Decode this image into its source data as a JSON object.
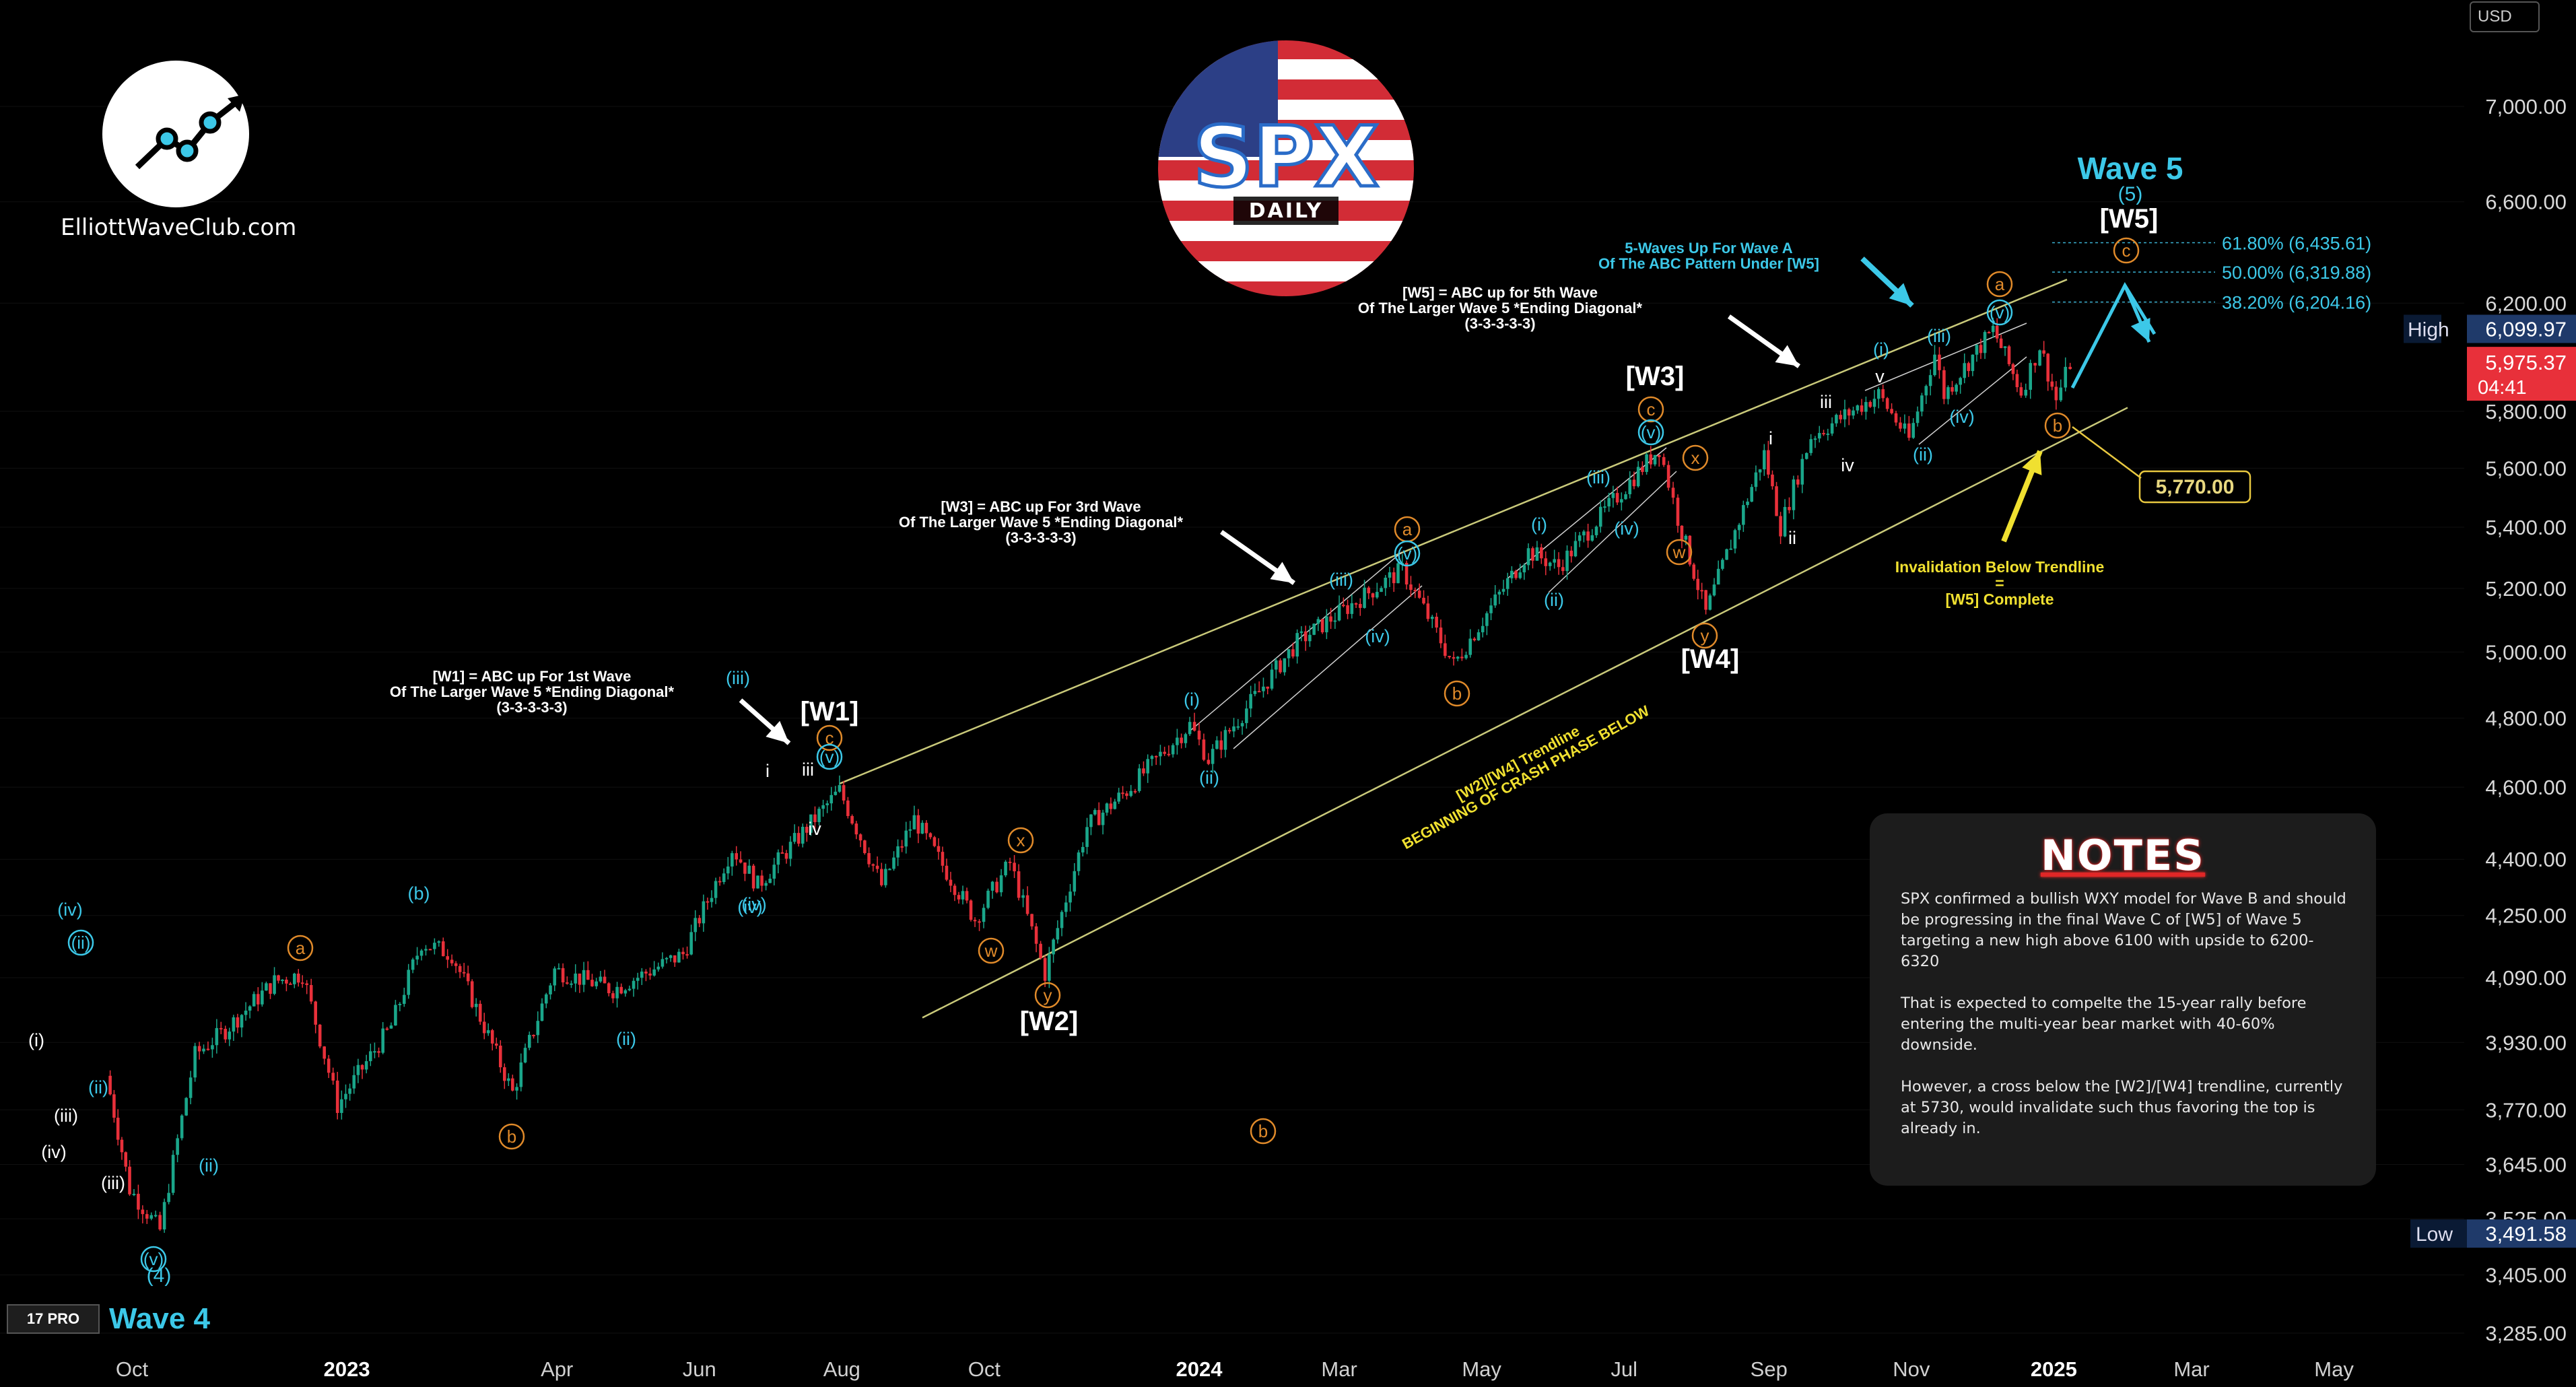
{
  "chart_data": {
    "type": "candlestick",
    "title": "SPX",
    "subtitle": "DAILY",
    "y_scale": "log",
    "ylim": [
      3240,
      7250
    ],
    "currency": "USD",
    "y_ticks": [
      "7,000.00",
      "6,600.00",
      "6,200.00",
      "5,800.00",
      "5,600.00",
      "5,400.00",
      "5,200.00",
      "5,000.00",
      "4,800.00",
      "4,600.00",
      "4,400.00",
      "4,250.00",
      "4,090.00",
      "3,930.00",
      "3,770.00",
      "3,645.00",
      "3,525.00",
      "3,405.00",
      "3,285.00"
    ],
    "x_ticks": [
      "Oct",
      "2023",
      "Apr",
      "Jun",
      "Aug",
      "Oct",
      "2024",
      "Mar",
      "May",
      "Jul",
      "Sep",
      "Nov",
      "2025",
      "Mar",
      "May"
    ],
    "price_series": [
      [
        "2022-09-20",
        3850
      ],
      [
        "2022-09-30",
        3590
      ],
      [
        "2022-10-13",
        3500
      ],
      [
        "2022-10-28",
        3900
      ],
      [
        "2022-11-10",
        3960
      ],
      [
        "2022-12-01",
        4080
      ],
      [
        "2022-12-13",
        4100
      ],
      [
        "2022-12-28",
        3780
      ],
      [
        "2023-01-20",
        3970
      ],
      [
        "2023-02-02",
        4180
      ],
      [
        "2023-02-15",
        4150
      ],
      [
        "2023-03-13",
        3810
      ],
      [
        "2023-03-31",
        4110
      ],
      [
        "2023-04-25",
        4060
      ],
      [
        "2023-05-25",
        4150
      ],
      [
        "2023-06-15",
        4430
      ],
      [
        "2023-06-26",
        4330
      ],
      [
        "2023-07-31",
        4590
      ],
      [
        "2023-08-18",
        4330
      ],
      [
        "2023-09-01",
        4510
      ],
      [
        "2023-09-27",
        4240
      ],
      [
        "2023-10-12",
        4390
      ],
      [
        "2023-10-27",
        4100
      ],
      [
        "2023-11-14",
        4490
      ],
      [
        "2023-12-01",
        4590
      ],
      [
        "2023-12-28",
        4780
      ],
      [
        "2024-01-05",
        4680
      ],
      [
        "2024-02-12",
        5030
      ],
      [
        "2024-03-28",
        5260
      ],
      [
        "2024-04-19",
        4960
      ],
      [
        "2024-05-21",
        5320
      ],
      [
        "2024-06-03",
        5270
      ],
      [
        "2024-07-16",
        5670
      ],
      [
        "2024-07-24",
        5430
      ],
      [
        "2024-08-05",
        5120
      ],
      [
        "2024-08-30",
        5650
      ],
      [
        "2024-09-06",
        5400
      ],
      [
        "2024-09-19",
        5710
      ],
      [
        "2024-10-18",
        5860
      ],
      [
        "2024-10-31",
        5700
      ],
      [
        "2024-11-11",
        6010
      ],
      [
        "2024-11-15",
        5860
      ],
      [
        "2024-12-06",
        6099.97
      ],
      [
        "2024-12-18",
        5870
      ],
      [
        "2024-12-26",
        6040
      ],
      [
        "2025-01-02",
        5840
      ],
      [
        "2025-01-08",
        5975.37
      ]
    ],
    "fib_levels": [
      {
        "label": "61.80% (6,435.61)",
        "value": 6435.61
      },
      {
        "label": "50.00% (6,319.88)",
        "value": 6319.88
      },
      {
        "label": "38.20% (6,204.16)",
        "value": 6204.16
      }
    ],
    "price_labels": {
      "high_label": "High",
      "high_value": "6,099.97",
      "last_value": "5,975.37",
      "countdown": "04:41",
      "low_label": "Low",
      "low_value": "3,491.58"
    },
    "trendlines": [
      {
        "name": "upper",
        "from": [
          "2023-07-31",
          4610
        ],
        "to": [
          "2025-01-01",
          6270
        ]
      },
      {
        "name": "lower",
        "from": [
          "2023-08-25",
          3960
        ],
        "to": [
          "2025-01-20",
          5760
        ]
      }
    ],
    "wave_labels": {
      "w1": "[W1]",
      "w2": "[W2]",
      "w3": "[W3]",
      "w4": "[W4]",
      "w5": "[W5]",
      "wave5": "Wave 5",
      "wave5_sub": "(5)",
      "wave4": "Wave 4",
      "wave4_sub": "(4)"
    },
    "annotations": {
      "w1_note": [
        "[W1] = ABC up For 1st Wave",
        "Of The Larger Wave 5 *Ending Diagonal*",
        "(3-3-3-3-3)"
      ],
      "w3_note": [
        "[W3] = ABC up For 3rd Wave",
        "Of The Larger Wave 5 *Ending Diagonal*",
        "(3-3-3-3-3)"
      ],
      "w5_note": [
        "[W5] = ABC up for 5th Wave",
        "Of The Larger Wave 5 *Ending Diagonal*",
        "(3-3-3-3-3)"
      ],
      "wave_a_note": [
        "5-Waves Up For Wave A",
        "Of The ABC Pattern Under [W5]"
      ],
      "trendline_note": [
        "[W2]/[W4] Trendline",
        "BEGINNING OF CRASH PHASE BELOW"
      ],
      "invalidation_note": [
        "Invalidation Below Trendline",
        "=",
        "[W5] Complete"
      ],
      "invalidation_level": "5,770.00"
    }
  },
  "logo": {
    "text": "ElliottWaveClub.com"
  },
  "badge": {
    "spx": "SPX",
    "daily": "DAILY"
  },
  "tv": {
    "logo": "17 PRO"
  },
  "notes": {
    "title": "NOTES",
    "p1": "SPX confirmed a bullish WXY model for Wave B and should be progressing in the final Wave C of [W5] of Wave 5 targeting a new high above 6100 with upside to 6200-6320",
    "p2": "That is expected to compelte the 15-year rally before entering the multi-year bear market with 40-60% downside.",
    "p3": "However, a cross below the [W2]/[W4] trendline, currently at 5730, would invalidate such thus favoring the top is already in."
  },
  "colors": {
    "up": "#1aa68a",
    "down": "#e8303a",
    "trend": "#c9c97a",
    "cyan": "#3cc8e8",
    "orange": "#e08a2a",
    "yellow": "#f0e030"
  }
}
